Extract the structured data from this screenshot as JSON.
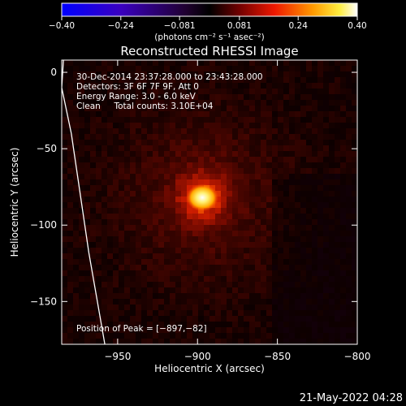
{
  "chart_data": {
    "type": "heatmap",
    "title": "Reconstructed RHESSI Image",
    "xlabel": "Heliocentric X (arcsec)",
    "ylabel": "Heliocentric Y (arcsec)",
    "xlim": [
      -985,
      -800
    ],
    "ylim": [
      -178,
      8
    ],
    "xticks": [
      -950,
      -900,
      -850,
      -800
    ],
    "yticks": [
      0,
      -50,
      -100,
      -150
    ],
    "xtick_labels": [
      "−950",
      "−900",
      "−850",
      "−800"
    ],
    "ytick_labels": [
      "0",
      "−50",
      "−100",
      "−150"
    ],
    "colorbar": {
      "min": -0.4,
      "max": 0.4,
      "tick_values": [
        -0.4,
        -0.24,
        -0.081,
        0.081,
        0.24,
        0.4
      ],
      "tick_labels": [
        "−0.40",
        "−0.24",
        "−0.081",
        "0.081",
        "0.24",
        "0.40"
      ],
      "unit_label": "(photons cm⁻² s⁻¹ asec⁻²)"
    },
    "annotations": [
      "30-Dec-2014 23:37:28.000 to 23:43:28.000",
      "Detectors: 3F 6F 7F 9F, Att 0",
      "Energy Range: 3.0 - 6.0 keV",
      "Clean     Total counts: 3.10E+04"
    ],
    "peak_label": "Position of Peak = [−897,−82]",
    "peak": {
      "x": -897,
      "y": -82,
      "value": 0.4
    },
    "limb": [
      [
        -985,
        -10
      ],
      [
        -982,
        40
      ],
      [
        -979,
        -40
      ],
      [
        -968,
        -118
      ],
      [
        -958,
        -178
      ]
    ]
  },
  "footer": {
    "timestamp": "21-May-2022 04:28"
  }
}
